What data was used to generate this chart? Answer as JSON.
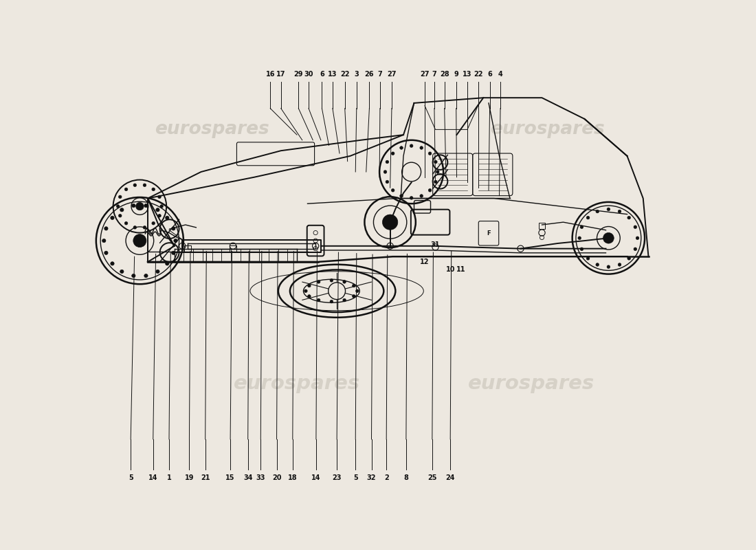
{
  "bg_color": "#ede8e0",
  "line_color": "#111111",
  "watermark_color": "#bbb5aa",
  "top_labels": {
    "numbers": [
      "16",
      "17",
      "29",
      "30",
      "6",
      "13",
      "22",
      "3",
      "26",
      "7",
      "27",
      "27",
      "7",
      "28",
      "9",
      "13",
      "22",
      "6",
      "4"
    ],
    "x_positions": [
      0.33,
      0.35,
      0.383,
      0.402,
      0.427,
      0.447,
      0.47,
      0.492,
      0.516,
      0.536,
      0.558,
      0.62,
      0.638,
      0.657,
      0.679,
      0.7,
      0.72,
      0.742,
      0.762
    ]
  },
  "bottom_labels": {
    "numbers": [
      "5",
      "14",
      "1",
      "19",
      "21",
      "15",
      "34",
      "33",
      "20",
      "18",
      "14",
      "23",
      "5",
      "32",
      "2",
      "8",
      "25",
      "24"
    ],
    "x_positions": [
      0.068,
      0.11,
      0.14,
      0.178,
      0.208,
      0.255,
      0.288,
      0.312,
      0.342,
      0.372,
      0.416,
      0.455,
      0.49,
      0.52,
      0.548,
      0.585,
      0.634,
      0.668
    ]
  },
  "side_label_31": [
    0.64,
    0.462
  ],
  "side_label_12": [
    0.62,
    0.43
  ],
  "side_label_10": [
    0.668,
    0.415
  ],
  "side_label_11": [
    0.688,
    0.415
  ]
}
